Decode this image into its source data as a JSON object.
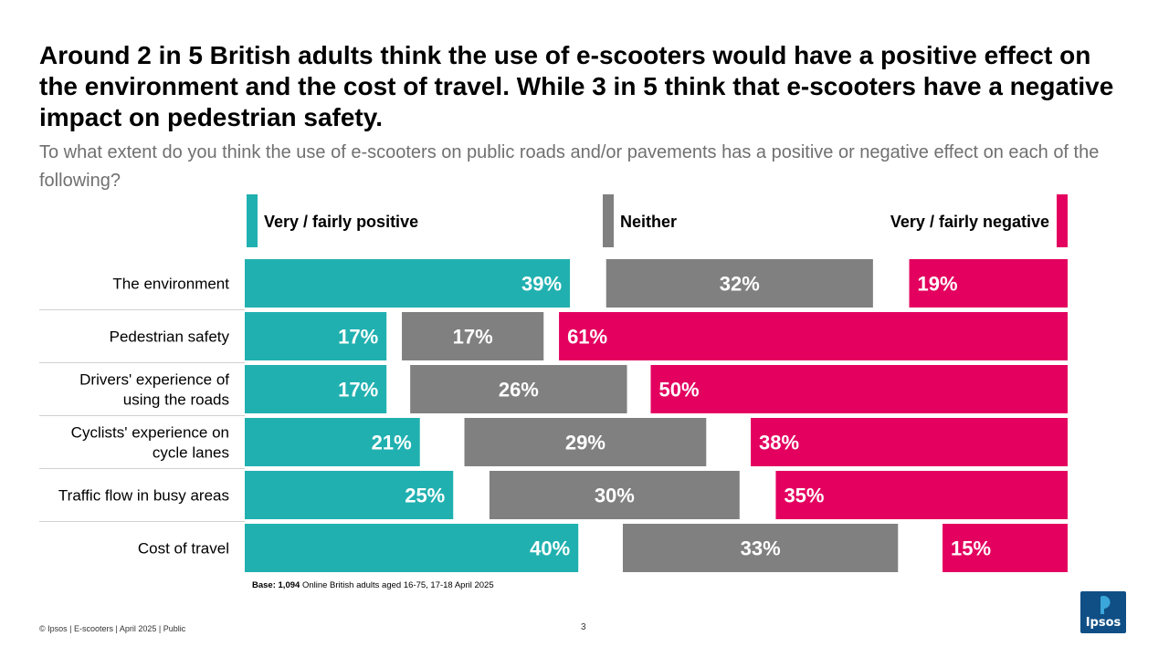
{
  "title": "Around 2 in 5 British adults think the use of e-scooters would have a positive effect on the environment and the cost of travel. While 3 in 5 think that e-scooters have a negative impact on pedestrian safety.",
  "subtitle": "To what extent do you think the use of e-scooters on public roads and/or pavements has a positive or negative effect on each of the following?",
  "colors": {
    "positive": "#21b0b0",
    "neither": "#808080",
    "negative": "#e3005f"
  },
  "chart_data": {
    "type": "bar",
    "orientation": "horizontal",
    "stacked": true,
    "categories": [
      "The environment",
      "Pedestrian safety",
      "Drivers' experience of using the roads",
      "Cyclists' experience on cycle lanes",
      "Traffic flow in busy areas",
      "Cost of travel"
    ],
    "category_lines": [
      [
        "The environment"
      ],
      [
        "Pedestrian safety"
      ],
      [
        "Drivers' experience of",
        "using the roads"
      ],
      [
        "Cyclists' experience on",
        "cycle lanes"
      ],
      [
        "Traffic flow in busy areas"
      ],
      [
        "Cost of travel"
      ]
    ],
    "series": [
      {
        "name": "Very / fairly positive",
        "values": [
          39,
          17,
          17,
          21,
          25,
          40
        ]
      },
      {
        "name": "Neither",
        "values": [
          32,
          17,
          26,
          29,
          30,
          33
        ]
      },
      {
        "name": "Very / fairly negative",
        "values": [
          19,
          61,
          50,
          38,
          35,
          15
        ]
      }
    ],
    "unit": "%"
  },
  "base": {
    "label": "Base:",
    "n": "1,094",
    "text": "Online British adults aged 16-75, 17-18 April 2025"
  },
  "footer": "© Ipsos | E-scooters | April 2025 | Public",
  "page_number": "3",
  "logo_text": "Ipsos"
}
